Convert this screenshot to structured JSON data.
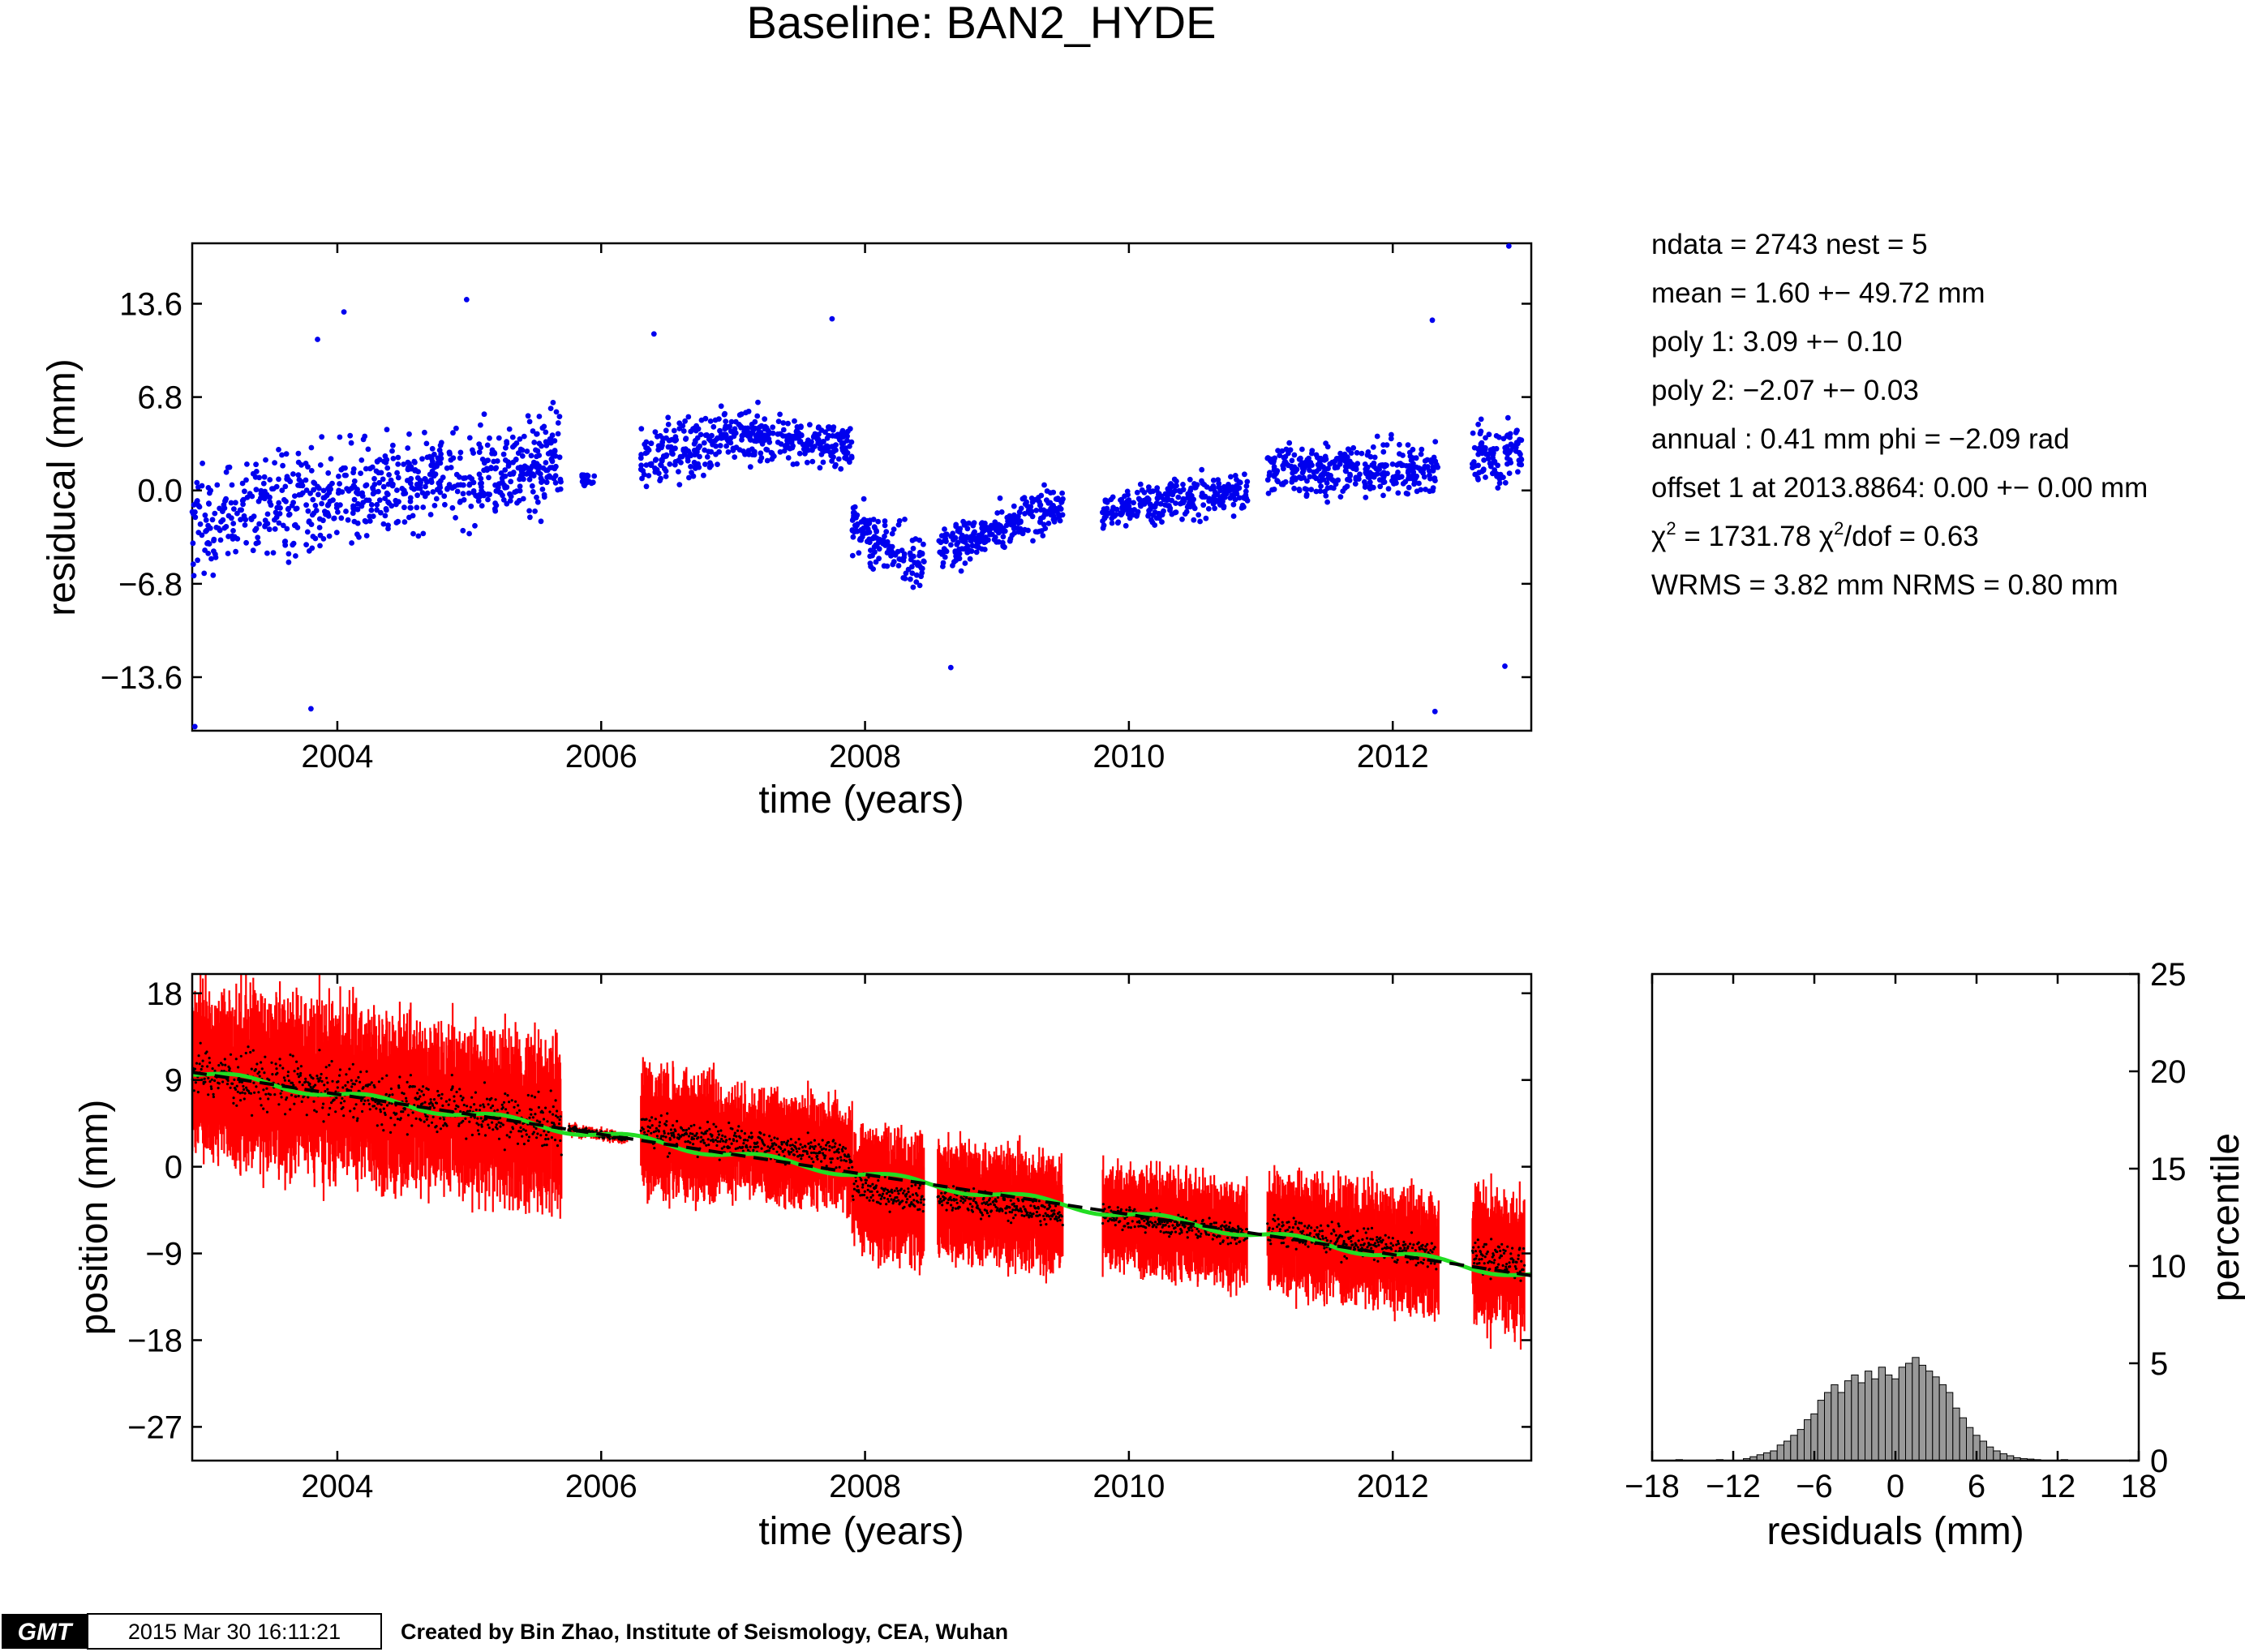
{
  "title": "Baseline: BAN2_HYDE",
  "stats": [
    "ndata = 2743  nest = 5",
    "mean = 1.60 +− 49.72 mm",
    "poly 1: 3.09 +− 0.10",
    "poly 2: −2.07 +− 0.03",
    "annual : 0.41 mm  phi = −2.09 rad",
    "offset 1 at 2013.8864: 0.00 +− 0.00 mm"
  ],
  "chi": {
    "symbol": "χ",
    "sup": "2",
    "value": " = 1731.78  ",
    "dof_symbol": "χ",
    "dof_sup": "2",
    "dof_value": "/dof = 0.63"
  },
  "wrms": "WRMS = 3.82 mm  NRMS = 0.80 mm",
  "footer": {
    "logo": "GMT",
    "timestamp": "2015 Mar 30 16:11:21",
    "credit": "Created by Bin Zhao, Institute of Seismology, CEA, Wuhan"
  },
  "colors": {
    "residual_points": "#0000ee",
    "position_errorbars": "#ff0000",
    "position_points": "#000000",
    "trend_line": "#000000",
    "model_line": "#22dd22",
    "histogram_bars": "#999999"
  },
  "chart_data": [
    {
      "type": "scatter",
      "name": "residuals",
      "xlabel": "time (years)",
      "ylabel": "residucal (mm)",
      "xlim": [
        2002.9,
        2013.05
      ],
      "ylim": [
        -17.5,
        18.0
      ],
      "xticks": [
        2004,
        2006,
        2008,
        2010,
        2012
      ],
      "xtick_labels": [
        "2004",
        "2006",
        "2008",
        "2010",
        "2012"
      ],
      "yticks": [
        13.6,
        6.8,
        0.0,
        -6.8,
        -13.6
      ],
      "ytick_labels": [
        "13.6",
        "6.8",
        "0.0",
        "−6.8",
        "−13.6"
      ],
      "segments": [
        {
          "x": [
            2002.9,
            2005.7
          ],
          "mean": [
            -2.5,
            2.5
          ],
          "spread": 4.5
        },
        {
          "x": [
            2005.85,
            2005.95
          ],
          "mean": [
            0.8,
            0.8
          ],
          "spread": 0.6
        },
        {
          "x": [
            2006.3,
            2006.9
          ],
          "mean": [
            2.5,
            3.5
          ],
          "spread": 2.8
        },
        {
          "x": [
            2006.9,
            2007.9
          ],
          "mean": [
            4.2,
            3.2
          ],
          "spread": 2.2
        },
        {
          "x": [
            2007.9,
            2008.45
          ],
          "mean": [
            -2.5,
            -5.5
          ],
          "spread": 2.4
        },
        {
          "x": [
            2008.55,
            2009.5
          ],
          "mean": [
            -4.5,
            -1.0
          ],
          "spread": 2.0
        },
        {
          "x": [
            2009.8,
            2010.9
          ],
          "mean": [
            -1.5,
            0.0
          ],
          "spread": 1.8
        },
        {
          "x": [
            2011.05,
            2012.35
          ],
          "mean": [
            1.5,
            1.5
          ],
          "spread": 2.3
        },
        {
          "x": [
            2012.6,
            2013.0
          ],
          "mean": [
            2.5,
            3.0
          ],
          "spread": 3.0
        }
      ],
      "outliers": [
        {
          "x": 2002.92,
          "y": -17.2
        },
        {
          "x": 2003.8,
          "y": -15.9
        },
        {
          "x": 2003.85,
          "y": 11.0
        },
        {
          "x": 2004.05,
          "y": 13.0
        },
        {
          "x": 2004.98,
          "y": 13.9
        },
        {
          "x": 2006.4,
          "y": 11.4
        },
        {
          "x": 2007.75,
          "y": 12.5
        },
        {
          "x": 2008.65,
          "y": -12.9
        },
        {
          "x": 2012.3,
          "y": 12.4
        },
        {
          "x": 2012.32,
          "y": -16.1
        },
        {
          "x": 2012.88,
          "y": 17.8
        },
        {
          "x": 2012.85,
          "y": -12.8
        }
      ]
    },
    {
      "type": "line",
      "name": "position",
      "xlabel": "time (years)",
      "ylabel": "position (mm)",
      "xlim": [
        2002.9,
        2013.05
      ],
      "ylim": [
        -30.5,
        20.0
      ],
      "xticks": [
        2004,
        2006,
        2008,
        2010,
        2012
      ],
      "xtick_labels": [
        "2004",
        "2006",
        "2008",
        "2010",
        "2012"
      ],
      "yticks": [
        18,
        9,
        0,
        -9,
        -18,
        -27
      ],
      "ytick_labels": [
        "18",
        "9",
        "0",
        "−9",
        "−18",
        "−27"
      ],
      "trend": {
        "x": [
          2002.9,
          2013.05
        ],
        "y": [
          9.8,
          -11.3
        ]
      },
      "model_wiggle_mm": 0.45,
      "segments": [
        {
          "x": [
            2002.9,
            2005.7
          ],
          "offset": 0.5,
          "spread": 4.5,
          "err": 7.0
        },
        {
          "x": [
            2005.75,
            2006.2
          ],
          "offset": 0.0,
          "spread": 0.6,
          "err": 0.4
        },
        {
          "x": [
            2006.3,
            2006.9
          ],
          "offset": 3.0,
          "spread": 2.8,
          "err": 5.5
        },
        {
          "x": [
            2006.9,
            2007.9
          ],
          "offset": 3.8,
          "spread": 2.2,
          "err": 4.5
        },
        {
          "x": [
            2007.9,
            2008.45
          ],
          "offset": -4.0,
          "spread": 2.4,
          "err": 5.5
        },
        {
          "x": [
            2008.55,
            2009.5
          ],
          "offset": -2.8,
          "spread": 2.0,
          "err": 5.0
        },
        {
          "x": [
            2009.8,
            2010.9
          ],
          "offset": -0.8,
          "spread": 1.8,
          "err": 4.5
        },
        {
          "x": [
            2011.05,
            2012.35
          ],
          "offset": 1.5,
          "spread": 2.3,
          "err": 5.0
        },
        {
          "x": [
            2012.6,
            2013.0
          ],
          "offset": 2.8,
          "spread": 3.0,
          "err": 6.0
        }
      ]
    },
    {
      "type": "bar",
      "name": "residual-histogram",
      "xlabel": "residuals (mm)",
      "ylabel": "percentile",
      "xlim": [
        -18,
        18
      ],
      "ylim": [
        0,
        25
      ],
      "xticks": [
        -18,
        -12,
        -6,
        0,
        6,
        12,
        18
      ],
      "xtick_labels": [
        "−18",
        "−12",
        "−6",
        "0",
        "6",
        "12",
        "18"
      ],
      "yticks": [
        0,
        5,
        10,
        15,
        20,
        25
      ],
      "ytick_labels": [
        "0",
        "5",
        "10",
        "15",
        "20",
        "25"
      ],
      "bin_width": 0.5,
      "bins": [
        {
          "x": -16.0,
          "v": 0.05
        },
        {
          "x": -13.0,
          "v": 0.05
        },
        {
          "x": -11.0,
          "v": 0.1
        },
        {
          "x": -10.5,
          "v": 0.2
        },
        {
          "x": -10.0,
          "v": 0.3
        },
        {
          "x": -9.5,
          "v": 0.4
        },
        {
          "x": -9.0,
          "v": 0.5
        },
        {
          "x": -8.5,
          "v": 0.8
        },
        {
          "x": -8.0,
          "v": 1.0
        },
        {
          "x": -7.5,
          "v": 1.3
        },
        {
          "x": -7.0,
          "v": 1.6
        },
        {
          "x": -6.5,
          "v": 2.1
        },
        {
          "x": -6.0,
          "v": 2.4
        },
        {
          "x": -5.5,
          "v": 3.1
        },
        {
          "x": -5.0,
          "v": 3.5
        },
        {
          "x": -4.5,
          "v": 3.9
        },
        {
          "x": -4.0,
          "v": 3.5
        },
        {
          "x": -3.5,
          "v": 4.1
        },
        {
          "x": -3.0,
          "v": 4.4
        },
        {
          "x": -2.5,
          "v": 4.0
        },
        {
          "x": -2.0,
          "v": 4.6
        },
        {
          "x": -1.5,
          "v": 4.2
        },
        {
          "x": -1.0,
          "v": 4.8
        },
        {
          "x": -0.5,
          "v": 4.4
        },
        {
          "x": 0.0,
          "v": 4.2
        },
        {
          "x": 0.5,
          "v": 4.8
        },
        {
          "x": 1.0,
          "v": 5.0
        },
        {
          "x": 1.5,
          "v": 5.3
        },
        {
          "x": 2.0,
          "v": 4.9
        },
        {
          "x": 2.5,
          "v": 4.6
        },
        {
          "x": 3.0,
          "v": 4.3
        },
        {
          "x": 3.5,
          "v": 3.9
        },
        {
          "x": 4.0,
          "v": 3.5
        },
        {
          "x": 4.5,
          "v": 2.7
        },
        {
          "x": 5.0,
          "v": 2.2
        },
        {
          "x": 5.5,
          "v": 1.7
        },
        {
          "x": 6.0,
          "v": 1.3
        },
        {
          "x": 6.5,
          "v": 1.0
        },
        {
          "x": 7.0,
          "v": 0.7
        },
        {
          "x": 7.5,
          "v": 0.5
        },
        {
          "x": 8.0,
          "v": 0.35
        },
        {
          "x": 8.5,
          "v": 0.25
        },
        {
          "x": 9.0,
          "v": 0.15
        },
        {
          "x": 9.5,
          "v": 0.1
        },
        {
          "x": 10.0,
          "v": 0.08
        },
        {
          "x": 10.5,
          "v": 0.05
        },
        {
          "x": 12.5,
          "v": 0.05
        }
      ]
    }
  ]
}
